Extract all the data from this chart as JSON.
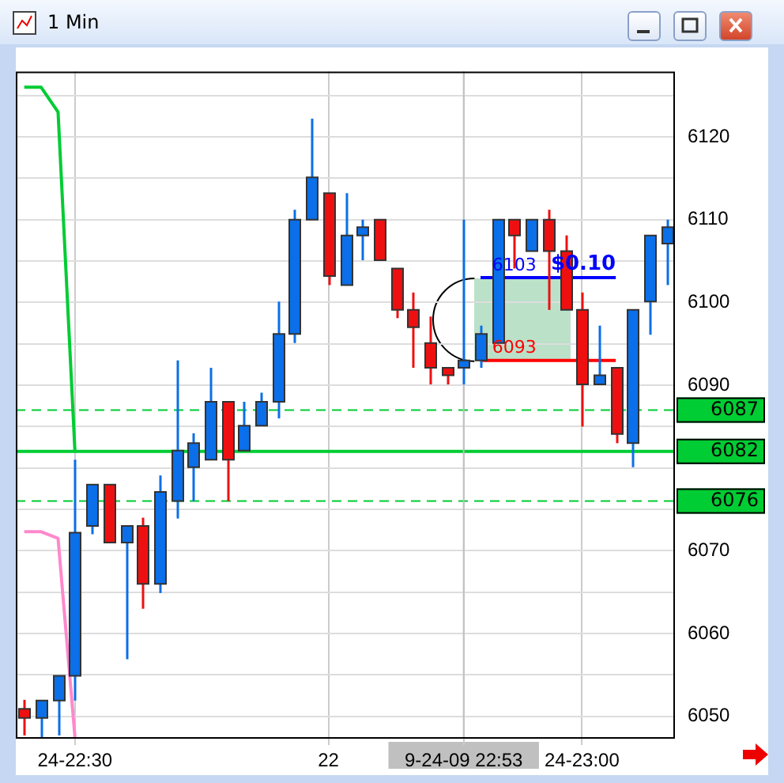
{
  "chart_data": {
    "type": "candlestick",
    "title": "1 Min",
    "categories": [
      null,
      null,
      null,
      "24-22:30",
      null,
      null,
      null,
      null,
      null,
      null,
      null,
      null,
      null,
      null,
      null,
      null,
      null,
      null,
      "22",
      null,
      null,
      null,
      null,
      null,
      null,
      null,
      "9-24-09 22:53",
      null,
      null,
      null,
      null,
      null,
      null,
      "24-23:00",
      null,
      null,
      null,
      null,
      null
    ],
    "ohlc": [
      [
        6050.9,
        6052.0,
        6047.7,
        6049.8
      ],
      [
        6049.8,
        6051.9,
        6047.4,
        6051.9
      ],
      [
        6051.9,
        6054.9,
        6047.7,
        6054.9
      ],
      [
        6054.9,
        6081.0,
        6051.9,
        6072.2
      ],
      [
        6073.0,
        6078.0,
        6072.0,
        6078.0
      ],
      [
        6078.0,
        6078.0,
        6071.0,
        6071.0
      ],
      [
        6071.0,
        6073.0,
        6056.9,
        6073.0
      ],
      [
        6073.0,
        6074.0,
        6063.0,
        6066.0
      ],
      [
        6066.0,
        6079.1,
        6064.9,
        6077.1
      ],
      [
        6076.0,
        6093.0,
        6073.9,
        6082.1
      ],
      [
        6080.1,
        6084.2,
        6076.0,
        6083.0
      ],
      [
        6081.0,
        6092.1,
        6081.0,
        6088.0
      ],
      [
        6088.0,
        6088.0,
        6076.0,
        6081.0
      ],
      [
        6082.1,
        6088.0,
        6082.1,
        6085.1
      ],
      [
        6085.1,
        6089.1,
        6085.1,
        6088.0
      ],
      [
        6088.0,
        6100.1,
        6086.0,
        6096.2
      ],
      [
        6096.2,
        6111.2,
        6095.1,
        6110.0
      ],
      [
        6110.0,
        6122.2,
        6110.0,
        6115.1
      ],
      [
        6113.2,
        6113.2,
        6102.1,
        6103.2
      ],
      [
        6102.1,
        6113.2,
        6102.1,
        6108.1
      ],
      [
        6108.1,
        6110.0,
        6105.1,
        6109.1
      ],
      [
        6110.0,
        6110.0,
        6105.1,
        6105.1
      ],
      [
        6104.1,
        6104.1,
        6098.1,
        6099.1
      ],
      [
        6099.1,
        6101.2,
        6092.1,
        6097.0
      ],
      [
        6095.1,
        6098.3,
        6090.1,
        6092.1
      ],
      [
        6092.1,
        6092.1,
        6090.1,
        6091.2
      ],
      [
        6092.1,
        6110.0,
        6090.1,
        6093.0
      ],
      [
        6093.0,
        6097.2,
        6092.1,
        6096.2
      ],
      [
        6095.1,
        6110.0,
        6095.1,
        6110.0
      ],
      [
        6110.0,
        6110.0,
        6104.1,
        6108.1
      ],
      [
        6106.2,
        6110.0,
        6106.2,
        6110.0
      ],
      [
        6110.0,
        6111.2,
        6099.1,
        6106.2
      ],
      [
        6106.2,
        6108.1,
        6099.1,
        6099.1
      ],
      [
        6099.1,
        6101.2,
        6085.0,
        6090.1
      ],
      [
        6090.1,
        6097.2,
        6090.1,
        6091.2
      ],
      [
        6092.1,
        6092.1,
        6083.0,
        6084.1
      ],
      [
        6083.0,
        6099.1,
        6080.1,
        6099.1
      ],
      [
        6100.1,
        6108.1,
        6096.1,
        6108.1
      ],
      [
        6107.1,
        6110.0,
        6102.1,
        6109.1
      ]
    ],
    "colors": [
      "#ee1010",
      "#0a6fe8",
      "#0a6fe8",
      "#0a6fe8",
      "#0a6fe8",
      "#ee1010",
      "#0a6fe8",
      "#ee1010",
      "#0a6fe8",
      "#0a6fe8",
      "#0a6fe8",
      "#0a6fe8",
      "#ee1010",
      "#0a6fe8",
      "#0a6fe8",
      "#0a6fe8",
      "#0a6fe8",
      "#0a6fe8",
      "#ee1010",
      "#0a6fe8",
      "#0a6fe8",
      "#ee1010",
      "#ee1010",
      "#ee1010",
      "#ee1010",
      "#ee1010",
      "#0a6fe8",
      "#0a6fe8",
      "#0a6fe8",
      "#ee1010",
      "#0a6fe8",
      "#ee1010",
      "#ee1010",
      "#ee1010",
      "#0a6fe8",
      "#ee1010",
      "#0a6fe8",
      "#0a6fe8",
      "#0a6fe8"
    ],
    "series": [
      {
        "type": "line",
        "color": "#00cc33",
        "values": [
          6126,
          6126,
          6123,
          6082,
          null,
          null,
          null,
          null,
          null,
          null,
          null,
          null,
          null,
          null,
          null,
          null,
          null,
          null,
          null,
          null,
          null,
          null,
          null,
          null,
          null,
          null,
          null,
          null,
          null,
          null,
          null,
          null,
          null,
          null,
          null,
          null,
          null,
          null,
          null
        ]
      },
      {
        "type": "line",
        "color": "#ff88cc",
        "values": [
          6072.3,
          6072.3,
          6071.5,
          6047.5,
          null,
          null,
          null,
          null,
          null,
          null,
          null,
          null,
          null,
          null,
          null,
          null,
          null,
          null,
          null,
          null,
          null,
          null,
          null,
          null,
          null,
          null,
          null,
          null,
          null,
          null,
          null,
          null,
          null,
          null,
          null,
          null,
          null,
          null,
          null
        ]
      },
      {
        "type": "line",
        "color": "#0000ff",
        "values": [
          null,
          null,
          null,
          null,
          null,
          null,
          null,
          null,
          null,
          null,
          null,
          null,
          null,
          null,
          null,
          null,
          null,
          null,
          null,
          null,
          null,
          null,
          null,
          null,
          null,
          null,
          null,
          6103,
          6103,
          6103,
          6103,
          6103,
          6103,
          6103,
          6103,
          6103,
          null,
          null,
          null
        ],
        "value_labels": [
          null,
          null,
          null,
          null,
          null,
          null,
          null,
          null,
          null,
          null,
          null,
          null,
          null,
          null,
          null,
          null,
          null,
          null,
          null,
          null,
          null,
          null,
          null,
          null,
          null,
          null,
          null,
          null,
          null,
          "6103",
          null,
          null,
          null,
          null,
          null,
          null,
          null,
          null,
          null
        ]
      },
      {
        "type": "line",
        "color": "#ff0000",
        "values": [
          null,
          null,
          null,
          null,
          null,
          null,
          null,
          null,
          null,
          null,
          null,
          null,
          null,
          null,
          null,
          null,
          null,
          null,
          null,
          null,
          null,
          null,
          null,
          null,
          null,
          null,
          null,
          6093,
          6093,
          6093,
          6093,
          6093,
          6093,
          6093,
          6093,
          6093,
          null,
          null,
          null
        ],
        "value_labels": [
          null,
          null,
          null,
          null,
          null,
          null,
          null,
          null,
          null,
          null,
          null,
          null,
          null,
          null,
          null,
          null,
          null,
          null,
          null,
          null,
          null,
          null,
          null,
          null,
          null,
          null,
          null,
          null,
          null,
          "6093",
          null,
          null,
          null,
          null,
          null,
          null,
          null,
          null,
          null
        ]
      }
    ],
    "ref_lines": [
      {
        "axis": "y",
        "value": 6087,
        "label": "6087",
        "color": "#00cc33",
        "line_style": "dashed"
      },
      {
        "axis": "y",
        "value": 6082,
        "label": "6082",
        "color": "#00cc33",
        "line_style": "solid"
      },
      {
        "axis": "y",
        "value": 6076,
        "label": "6076",
        "color": "#00cc33",
        "line_style": "dashed"
      },
      {
        "axis": "x",
        "value": "9-24-09 22:53",
        "color": "#c0c0c0"
      }
    ],
    "annotations": [
      "$0.10"
    ],
    "ylim": [
      6047.3,
      6127.9
    ],
    "yticks": [
      6050,
      {
        "value": 6055,
        "label": null
      },
      6060,
      {
        "value": 6065,
        "label": null
      },
      6070,
      {
        "value": 6075,
        "label": null
      },
      {
        "value": 6080,
        "label": null
      },
      {
        "value": 6085,
        "label": null
      },
      6090,
      {
        "value": 6095,
        "label": null
      },
      6100,
      {
        "value": 6105,
        "label": null
      },
      6110,
      {
        "value": 6115,
        "label": null
      },
      6120,
      {
        "value": 6125,
        "label": null
      }
    ],
    "grid": true,
    "legend": false,
    "marker": "none"
  }
}
